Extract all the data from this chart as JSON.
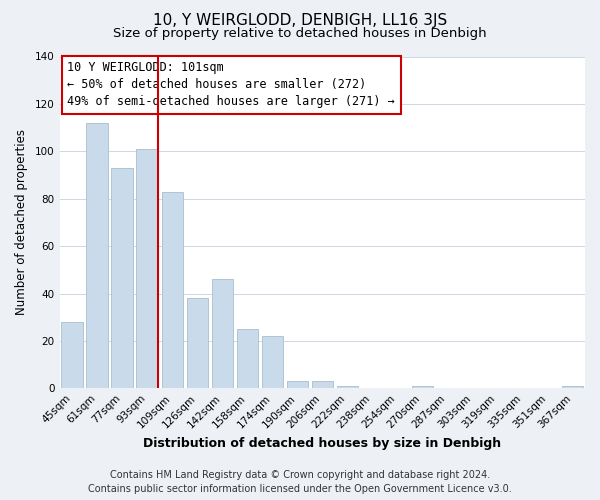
{
  "title": "10, Y WEIRGLODD, DENBIGH, LL16 3JS",
  "subtitle": "Size of property relative to detached houses in Denbigh",
  "xlabel": "Distribution of detached houses by size in Denbigh",
  "ylabel": "Number of detached properties",
  "footer_line1": "Contains HM Land Registry data © Crown copyright and database right 2024.",
  "footer_line2": "Contains public sector information licensed under the Open Government Licence v3.0.",
  "bar_labels": [
    "45sqm",
    "61sqm",
    "77sqm",
    "93sqm",
    "109sqm",
    "126sqm",
    "142sqm",
    "158sqm",
    "174sqm",
    "190sqm",
    "206sqm",
    "222sqm",
    "238sqm",
    "254sqm",
    "270sqm",
    "287sqm",
    "303sqm",
    "319sqm",
    "335sqm",
    "351sqm",
    "367sqm"
  ],
  "bar_values": [
    28,
    112,
    93,
    101,
    83,
    38,
    46,
    25,
    22,
    3,
    3,
    1,
    0,
    0,
    1,
    0,
    0,
    0,
    0,
    0,
    1
  ],
  "bar_color": "#c9daea",
  "bar_edge_color": "#a8bfcf",
  "highlight_line_color": "#cc0000",
  "annotation_text_line1": "10 Y WEIRGLODD: 101sqm",
  "annotation_text_line2": "← 50% of detached houses are smaller (272)",
  "annotation_text_line3": "49% of semi-detached houses are larger (271) →",
  "annotation_box_facecolor": "#ffffff",
  "annotation_box_edgecolor": "#cc0000",
  "ylim": [
    0,
    140
  ],
  "yticks": [
    0,
    20,
    40,
    60,
    80,
    100,
    120,
    140
  ],
  "background_color": "#edf1f5",
  "plot_bg_color": "#ffffff",
  "title_fontsize": 11,
  "subtitle_fontsize": 9.5,
  "tick_fontsize": 7.5,
  "ylabel_fontsize": 8.5,
  "xlabel_fontsize": 9,
  "annotation_fontsize": 8.5,
  "footer_fontsize": 7
}
